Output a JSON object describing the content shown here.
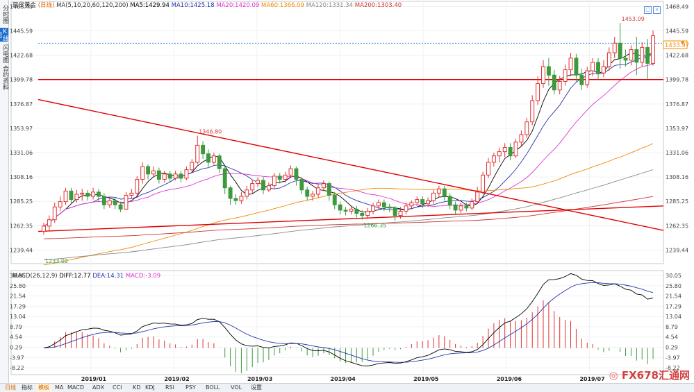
{
  "left_tabs": [
    {
      "label": "分时图",
      "active": false
    },
    {
      "label": "K线图",
      "active": true
    },
    {
      "label": "闪电图",
      "active": false
    },
    {
      "label": "合约资料",
      "active": false
    }
  ],
  "main_legend": {
    "symbol": "现货黄金",
    "period": "(日线)",
    "ma_label": "MA(5,10,20,60,120,200)",
    "ma5": "MA5:1429.94",
    "ma10": "MA10:1425.18",
    "ma20": "MA20:1420.09",
    "ma60": "MA60:1366.09",
    "ma120": "MA120:1331.34",
    "ma200": "MA200:1303.40"
  },
  "macd_legend": {
    "label": "MACD(26,12,9)",
    "diff": "DIFF:12.77",
    "dea": "DEA:14.31",
    "macd": "MACD:-3.09"
  },
  "price_axis": [
    "1468.49",
    "1445.59",
    "1422.68",
    "1399.78",
    "1376.87",
    "1353.97",
    "1331.06",
    "1308.16",
    "1285.25",
    "1262.35",
    "1239.44"
  ],
  "macd_axis": [
    "30.05",
    "25.80",
    "21.54",
    "17.29",
    "13.04",
    "8.79",
    "4.54",
    "0.29",
    "-3.97",
    "-8.22"
  ],
  "current_price": "1433.97",
  "price_annotations": {
    "high": "1453.09",
    "mid_high": "1346.80",
    "low_may": "1266.35",
    "low_jan": "1233.02"
  },
  "months": [
    "2019/01",
    "2019/02",
    "2019/03",
    "2019/04",
    "2019/05",
    "2019/06",
    "2019/07"
  ],
  "bottom_tabs": [
    {
      "label": "日线",
      "type": "period"
    },
    {
      "label": "指标",
      "type": "tab"
    },
    {
      "label": "模板",
      "type": "active"
    },
    {
      "label": "MA",
      "type": "tab"
    },
    {
      "label": "MACD",
      "type": "tab"
    },
    {
      "label": "ADX",
      "type": "tab"
    },
    {
      "label": "CCI",
      "type": "tab"
    },
    {
      "label": "KD",
      "type": "tab"
    },
    {
      "label": "KDJ",
      "type": "tab"
    },
    {
      "label": "RSI",
      "type": "tab"
    },
    {
      "label": "PSY",
      "type": "tab"
    },
    {
      "label": "BOLL",
      "type": "tab"
    },
    {
      "label": "VOL",
      "type": "tab"
    },
    {
      "label": "设置",
      "type": "tab"
    }
  ],
  "watermark": {
    "brand": "FX678",
    "suffix": "汇通网"
  },
  "colors": {
    "up": "#e03030",
    "down": "#3c9a3c",
    "ma5": "#000000",
    "ma10": "#2233aa",
    "ma20": "#dd33cc",
    "ma60": "#f08a00",
    "ma120": "#888888",
    "ma200": "#cc3333",
    "trend": "#e00000",
    "dash": "#2c7be5"
  },
  "chart_data": {
    "type": "candlestick",
    "period": "daily",
    "y_range": [
      1228,
      1472
    ],
    "start": "2018-12-24",
    "candles": [
      [
        1257,
        1262,
        1254,
        1265
      ],
      [
        1262,
        1268,
        1258,
        1272
      ],
      [
        1268,
        1280,
        1265,
        1284
      ],
      [
        1280,
        1285,
        1276,
        1290
      ],
      [
        1285,
        1295,
        1282,
        1298
      ],
      [
        1295,
        1287,
        1283,
        1298
      ],
      [
        1287,
        1292,
        1284,
        1296
      ],
      [
        1292,
        1293,
        1286,
        1297
      ],
      [
        1293,
        1290,
        1286,
        1296
      ],
      [
        1290,
        1294,
        1287,
        1298
      ],
      [
        1294,
        1290,
        1285,
        1297
      ],
      [
        1290,
        1282,
        1278,
        1293
      ],
      [
        1282,
        1286,
        1279,
        1289
      ],
      [
        1286,
        1282,
        1278,
        1289
      ],
      [
        1282,
        1278,
        1275,
        1285
      ],
      [
        1278,
        1291,
        1277,
        1294
      ],
      [
        1291,
        1293,
        1288,
        1297
      ],
      [
        1293,
        1306,
        1290,
        1309
      ],
      [
        1306,
        1318,
        1302,
        1322
      ],
      [
        1318,
        1311,
        1306,
        1320
      ],
      [
        1311,
        1314,
        1308,
        1318
      ],
      [
        1314,
        1306,
        1302,
        1317
      ],
      [
        1306,
        1311,
        1303,
        1314
      ],
      [
        1311,
        1307,
        1303,
        1314
      ],
      [
        1307,
        1311,
        1305,
        1314
      ],
      [
        1311,
        1307,
        1303,
        1314
      ],
      [
        1307,
        1315,
        1305,
        1318
      ],
      [
        1315,
        1322,
        1312,
        1325
      ],
      [
        1322,
        1338,
        1320,
        1347
      ],
      [
        1338,
        1330,
        1325,
        1342
      ],
      [
        1330,
        1322,
        1318,
        1334
      ],
      [
        1322,
        1328,
        1320,
        1331
      ],
      [
        1328,
        1316,
        1312,
        1330
      ],
      [
        1316,
        1298,
        1292,
        1318
      ],
      [
        1298,
        1288,
        1282,
        1300
      ],
      [
        1288,
        1286,
        1282,
        1292
      ],
      [
        1286,
        1290,
        1283,
        1294
      ],
      [
        1290,
        1296,
        1287,
        1300
      ],
      [
        1296,
        1302,
        1293,
        1305
      ],
      [
        1302,
        1305,
        1299,
        1308
      ],
      [
        1305,
        1296,
        1292,
        1308
      ],
      [
        1296,
        1300,
        1294,
        1303
      ],
      [
        1300,
        1309,
        1297,
        1312
      ],
      [
        1309,
        1306,
        1302,
        1312
      ],
      [
        1306,
        1310,
        1303,
        1313
      ],
      [
        1310,
        1316,
        1307,
        1319
      ],
      [
        1316,
        1306,
        1300,
        1318
      ],
      [
        1306,
        1296,
        1292,
        1308
      ],
      [
        1296,
        1290,
        1286,
        1299
      ],
      [
        1290,
        1292,
        1286,
        1295
      ],
      [
        1292,
        1298,
        1289,
        1301
      ],
      [
        1298,
        1302,
        1295,
        1305
      ],
      [
        1302,
        1291,
        1286,
        1304
      ],
      [
        1291,
        1282,
        1278,
        1294
      ],
      [
        1282,
        1277,
        1273,
        1285
      ],
      [
        1277,
        1276,
        1272,
        1280
      ],
      [
        1276,
        1278,
        1273,
        1281
      ],
      [
        1278,
        1274,
        1270,
        1281
      ],
      [
        1274,
        1272,
        1268,
        1277
      ],
      [
        1272,
        1276,
        1269,
        1279
      ],
      [
        1276,
        1281,
        1273,
        1284
      ],
      [
        1281,
        1284,
        1278,
        1287
      ],
      [
        1284,
        1280,
        1276,
        1287
      ],
      [
        1280,
        1279,
        1275,
        1283
      ],
      [
        1279,
        1272,
        1267,
        1281
      ],
      [
        1272,
        1276,
        1269,
        1280
      ],
      [
        1276,
        1281,
        1273,
        1284
      ],
      [
        1281,
        1284,
        1278,
        1286
      ],
      [
        1284,
        1287,
        1281,
        1290
      ],
      [
        1287,
        1283,
        1279,
        1290
      ],
      [
        1283,
        1286,
        1280,
        1289
      ],
      [
        1286,
        1293,
        1283,
        1296
      ],
      [
        1293,
        1297,
        1289,
        1300
      ],
      [
        1297,
        1290,
        1286,
        1300
      ],
      [
        1290,
        1282,
        1278,
        1293
      ],
      [
        1282,
        1277,
        1273,
        1285
      ],
      [
        1277,
        1281,
        1274,
        1284
      ],
      [
        1281,
        1279,
        1276,
        1284
      ],
      [
        1279,
        1285,
        1277,
        1288
      ],
      [
        1285,
        1294,
        1283,
        1299
      ],
      [
        1294,
        1310,
        1292,
        1313
      ],
      [
        1310,
        1322,
        1307,
        1326
      ],
      [
        1322,
        1328,
        1318,
        1331
      ],
      [
        1328,
        1332,
        1322,
        1336
      ],
      [
        1332,
        1336,
        1327,
        1340
      ],
      [
        1336,
        1328,
        1324,
        1340
      ],
      [
        1328,
        1341,
        1326,
        1344
      ],
      [
        1341,
        1348,
        1337,
        1352
      ],
      [
        1348,
        1360,
        1345,
        1364
      ],
      [
        1360,
        1380,
        1357,
        1385
      ],
      [
        1380,
        1396,
        1376,
        1403
      ],
      [
        1396,
        1412,
        1392,
        1418
      ],
      [
        1412,
        1404,
        1394,
        1420
      ],
      [
        1404,
        1390,
        1386,
        1409
      ],
      [
        1390,
        1398,
        1386,
        1403
      ],
      [
        1398,
        1409,
        1394,
        1414
      ],
      [
        1409,
        1420,
        1403,
        1425
      ],
      [
        1420,
        1404,
        1398,
        1424
      ],
      [
        1404,
        1395,
        1390,
        1410
      ],
      [
        1395,
        1408,
        1392,
        1412
      ],
      [
        1408,
        1416,
        1403,
        1420
      ],
      [
        1416,
        1406,
        1400,
        1420
      ],
      [
        1406,
        1412,
        1402,
        1418
      ],
      [
        1412,
        1425,
        1408,
        1430
      ],
      [
        1425,
        1434,
        1420,
        1440
      ],
      [
        1434,
        1420,
        1410,
        1453
      ],
      [
        1420,
        1418,
        1412,
        1428
      ],
      [
        1418,
        1428,
        1413,
        1432
      ],
      [
        1428,
        1416,
        1404,
        1440
      ],
      [
        1416,
        1430,
        1412,
        1435
      ],
      [
        1430,
        1415,
        1400,
        1438
      ],
      [
        1415,
        1441,
        1413,
        1446
      ]
    ],
    "moving_averages": [
      "MA5",
      "MA10",
      "MA20",
      "MA60",
      "MA120",
      "MA200"
    ],
    "annotations": [
      {
        "label": "1453.09",
        "type": "high"
      },
      {
        "label": "1346.80",
        "type": "high"
      },
      {
        "label": "1266.35",
        "type": "low"
      },
      {
        "label": "1233.02",
        "type": "low"
      }
    ],
    "trendlines": [
      {
        "from": [
          "2018-12-20",
          1381
        ],
        "to": [
          "2019-08-05",
          1258
        ]
      },
      {
        "from": [
          "2018-12-20",
          1257
        ],
        "to": [
          "2019-08-05",
          1281
        ]
      },
      {
        "level": 1399.78,
        "type": "horizontal"
      }
    ],
    "macd": {
      "fast": 26,
      "slow": 12,
      "signal": 9,
      "diff": 12.77,
      "dea": 14.31,
      "macd": -3.09,
      "y_range": [
        -10.5,
        31.5
      ]
    }
  }
}
